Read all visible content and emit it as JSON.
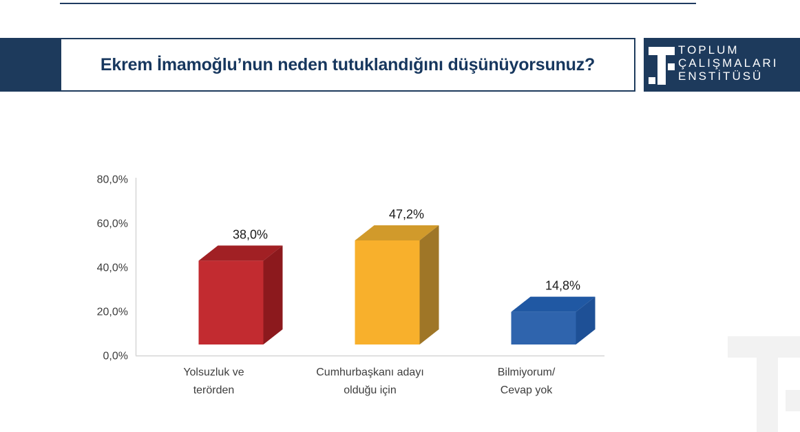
{
  "header": {
    "title": "Ekrem İmamoğlu’nun neden tutuklandığını düşünüyorsunuz?",
    "logo": {
      "line1": "TOPLUM",
      "line2": "ÇALIŞMALARI",
      "line3": "ENSTİTÜSÜ"
    }
  },
  "colors": {
    "navy_band": "#1d3a5c",
    "title_text": "#17375e",
    "axis_line": "#d6d6d6",
    "tick_text": "#3d3d3d",
    "value_text": "#1a1a1a",
    "watermark": "#f2f2f2"
  },
  "chart_data": {
    "type": "bar",
    "style": "3d",
    "title": "Ekrem İmamoğlu’nun neden tutuklandığını düşünüyorsunuz?",
    "categories": [
      "Yolsuzluk ve terörden",
      "Cumhurbaşkanı adayı olduğu için",
      "Bilmiyorum/ Cevap yok"
    ],
    "category_lines": [
      [
        "Yolsuzluk ve",
        "terörden"
      ],
      [
        "Cumhurbaşkanı adayı",
        "olduğu için"
      ],
      [
        "Bilmiyorum/",
        "Cevap yok"
      ]
    ],
    "values": [
      38.0,
      47.2,
      14.8
    ],
    "value_labels": [
      "38,0%",
      "47,2%",
      "14,8%"
    ],
    "yticks": [
      "0,0%",
      "20,0%",
      "40,0%",
      "60,0%",
      "80,0%"
    ],
    "ylim": [
      0,
      80
    ],
    "grid": false,
    "legend": false,
    "xlabel": "",
    "ylabel": "",
    "bar_colors": [
      {
        "front": "#c22b30",
        "top": "#a12024",
        "side": "#8c191d"
      },
      {
        "front": "#f8b02c",
        "top": "#d19a2b",
        "side": "#9f7627"
      },
      {
        "front": "#2f64ad",
        "top": "#2058a3",
        "side": "#1e5096"
      }
    ]
  }
}
